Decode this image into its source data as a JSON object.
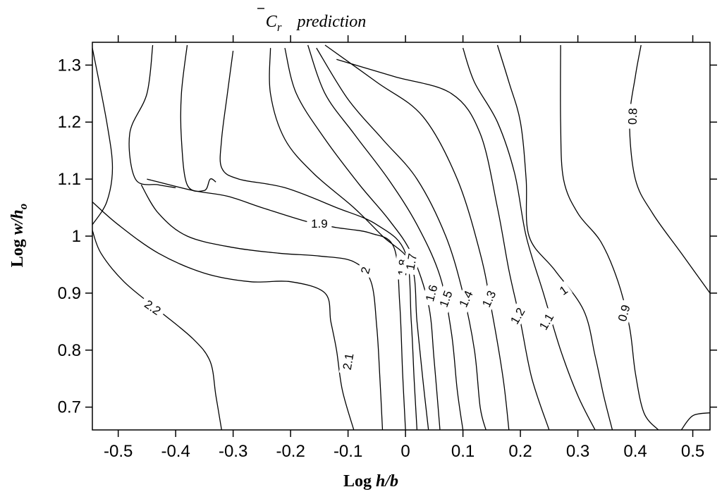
{
  "chart_data": {
    "type": "contour",
    "title": {
      "symbol": "C",
      "subscript": "r",
      "text": "prediction"
    },
    "xlabel": {
      "plain": "Log ",
      "italic": "h/b"
    },
    "ylabel": {
      "plain": "Log ",
      "italic": "w/h",
      "subscript": "o"
    },
    "xlim": [
      -0.545,
      0.53
    ],
    "ylim": [
      0.66,
      1.34
    ],
    "xticks": [
      -0.5,
      -0.4,
      -0.3,
      -0.2,
      -0.1,
      0,
      0.1,
      0.2,
      0.3,
      0.4,
      0.5
    ],
    "xtick_labels": [
      "-0.5",
      "-0.4",
      "-0.3",
      "-0.2",
      "-0.1",
      "0",
      "0.1",
      "0.2",
      "0.3",
      "0.4",
      "0.5"
    ],
    "yticks": [
      0.7,
      0.8,
      0.9,
      1.0,
      1.1,
      1.2,
      1.3
    ],
    "ytick_labels": [
      "0.7",
      "0.8",
      "0.9",
      "1",
      "1.1",
      "1.2",
      "1.3"
    ],
    "grid": false,
    "contours": [
      {
        "level": "2.2",
        "points": [
          [
            -0.32,
            0.66
          ],
          [
            -0.33,
            0.72
          ],
          [
            -0.34,
            0.78
          ],
          [
            -0.37,
            0.82
          ],
          [
            -0.43,
            0.87
          ],
          [
            -0.49,
            0.92
          ],
          [
            -0.53,
            0.97
          ],
          [
            -0.545,
            1.01
          ]
        ],
        "label": {
          "x": -0.44,
          "y": 0.875,
          "rot": 35
        }
      },
      {
        "level": "2.1",
        "points": [
          [
            -0.545,
            1.06
          ],
          [
            -0.5,
            1.02
          ],
          [
            -0.43,
            0.97
          ],
          [
            -0.35,
            0.935
          ],
          [
            -0.27,
            0.92
          ],
          [
            -0.2,
            0.92
          ],
          [
            -0.14,
            0.9
          ],
          [
            -0.13,
            0.85
          ],
          [
            -0.12,
            0.8
          ],
          [
            -0.11,
            0.73
          ],
          [
            -0.09,
            0.66
          ]
        ],
        "label": {
          "x": -0.1,
          "y": 0.78,
          "rot": -80
        }
      },
      {
        "level": "2",
        "points": [
          [
            -0.46,
            1.09
          ],
          [
            -0.43,
            1.04
          ],
          [
            -0.38,
            1.0
          ],
          [
            -0.3,
            0.98
          ],
          [
            -0.22,
            0.97
          ],
          [
            -0.15,
            0.965
          ],
          [
            -0.09,
            0.955
          ],
          [
            -0.06,
            0.92
          ],
          [
            -0.05,
            0.84
          ],
          [
            -0.045,
            0.76
          ],
          [
            -0.04,
            0.66
          ]
        ],
        "label": {
          "x": -0.07,
          "y": 0.94,
          "rot": -75
        }
      },
      {
        "level": "1.9",
        "points": [
          [
            -0.45,
            1.1
          ],
          [
            -0.37,
            1.08
          ],
          [
            -0.31,
            1.07
          ],
          [
            -0.25,
            1.05
          ],
          [
            -0.17,
            1.025
          ],
          [
            -0.12,
            1.015
          ],
          [
            -0.06,
            1.005
          ],
          [
            -0.02,
            0.98
          ],
          [
            -0.01,
            0.88
          ],
          [
            -0.005,
            0.76
          ],
          [
            0.0,
            0.66
          ]
        ],
        "label": {
          "x": -0.15,
          "y": 1.022,
          "rot": 0
        }
      },
      {
        "level": "1.8",
        "points": [
          [
            -0.3,
            1.325
          ],
          [
            -0.31,
            1.25
          ],
          [
            -0.32,
            1.17
          ],
          [
            -0.32,
            1.12
          ],
          [
            -0.29,
            1.1
          ],
          [
            -0.21,
            1.085
          ],
          [
            -0.12,
            1.05
          ],
          [
            -0.05,
            1.02
          ],
          [
            0.0,
            0.97
          ],
          [
            0.01,
            0.85
          ],
          [
            0.015,
            0.75
          ],
          [
            0.02,
            0.66
          ]
        ],
        "label": {
          "x": -0.005,
          "y": 0.945,
          "rot": -85
        }
      },
      {
        "level": "1.7",
        "points": [
          [
            -0.235,
            1.33
          ],
          [
            -0.235,
            1.25
          ],
          [
            -0.21,
            1.17
          ],
          [
            -0.16,
            1.11
          ],
          [
            -0.09,
            1.05
          ],
          [
            -0.04,
            1.0
          ],
          [
            0.01,
            0.95
          ],
          [
            0.02,
            0.85
          ],
          [
            0.03,
            0.75
          ],
          [
            0.04,
            0.66
          ]
        ],
        "label": {
          "x": 0.01,
          "y": 0.955,
          "rot": -80
        }
      },
      {
        "level": "1.6",
        "points": [
          [
            -0.21,
            1.33
          ],
          [
            -0.19,
            1.25
          ],
          [
            -0.14,
            1.17
          ],
          [
            -0.08,
            1.09
          ],
          [
            -0.03,
            1.03
          ],
          [
            0.01,
            0.97
          ],
          [
            0.04,
            0.88
          ],
          [
            0.05,
            0.78
          ],
          [
            0.06,
            0.66
          ]
        ],
        "label": {
          "x": 0.045,
          "y": 0.9,
          "rot": -75
        }
      },
      {
        "level": "1.5",
        "points": [
          [
            -0.17,
            1.335
          ],
          [
            -0.14,
            1.25
          ],
          [
            -0.09,
            1.18
          ],
          [
            -0.03,
            1.1
          ],
          [
            0.02,
            1.02
          ],
          [
            0.06,
            0.93
          ],
          [
            0.08,
            0.83
          ],
          [
            0.09,
            0.73
          ],
          [
            0.1,
            0.66
          ]
        ],
        "label": {
          "x": 0.07,
          "y": 0.89,
          "rot": -70
        }
      },
      {
        "level": "1.4",
        "points": [
          [
            -0.155,
            1.33
          ],
          [
            -0.1,
            1.24
          ],
          [
            -0.04,
            1.17
          ],
          [
            0.02,
            1.1
          ],
          [
            0.07,
            1.0
          ],
          [
            0.1,
            0.9
          ],
          [
            0.12,
            0.8
          ],
          [
            0.13,
            0.7
          ],
          [
            0.14,
            0.66
          ]
        ],
        "label": {
          "x": 0.105,
          "y": 0.89,
          "rot": -65
        }
      },
      {
        "level": "1.3",
        "points": [
          [
            -0.14,
            1.335
          ],
          [
            -0.05,
            1.27
          ],
          [
            0.03,
            1.21
          ],
          [
            0.09,
            1.1
          ],
          [
            0.13,
            0.97
          ],
          [
            0.15,
            0.87
          ],
          [
            0.17,
            0.75
          ],
          [
            0.18,
            0.66
          ]
        ],
        "label": {
          "x": 0.145,
          "y": 0.89,
          "rot": -65
        }
      },
      {
        "level": "1.2",
        "points": [
          [
            -0.12,
            1.31
          ],
          [
            -0.02,
            1.28
          ],
          [
            0.08,
            1.25
          ],
          [
            0.13,
            1.18
          ],
          [
            0.16,
            1.05
          ],
          [
            0.18,
            0.94
          ],
          [
            0.2,
            0.85
          ],
          [
            0.22,
            0.75
          ],
          [
            0.25,
            0.66
          ]
        ],
        "label": {
          "x": 0.195,
          "y": 0.86,
          "rot": -60
        }
      },
      {
        "level": "1.1",
        "points": [
          [
            0.1,
            1.33
          ],
          [
            0.12,
            1.27
          ],
          [
            0.16,
            1.2
          ],
          [
            0.19,
            1.11
          ],
          [
            0.21,
            1.0
          ],
          [
            0.24,
            0.9
          ],
          [
            0.27,
            0.8
          ],
          [
            0.3,
            0.72
          ],
          [
            0.33,
            0.66
          ]
        ],
        "label": {
          "x": 0.245,
          "y": 0.85,
          "rot": -60
        }
      },
      {
        "level": "1",
        "points": [
          [
            0.16,
            1.335
          ],
          [
            0.18,
            1.27
          ],
          [
            0.2,
            1.2
          ],
          [
            0.21,
            1.1
          ],
          [
            0.215,
            1.0
          ],
          [
            0.26,
            0.94
          ],
          [
            0.31,
            0.87
          ],
          [
            0.33,
            0.79
          ],
          [
            0.345,
            0.72
          ],
          [
            0.36,
            0.66
          ]
        ],
        "label": {
          "x": 0.275,
          "y": 0.905,
          "rot": -35
        }
      },
      {
        "level": "0.9",
        "points": [
          [
            0.27,
            1.335
          ],
          [
            0.27,
            1.2
          ],
          [
            0.275,
            1.1
          ],
          [
            0.3,
            1.04
          ],
          [
            0.34,
            0.99
          ],
          [
            0.37,
            0.92
          ],
          [
            0.39,
            0.84
          ],
          [
            0.4,
            0.76
          ],
          [
            0.415,
            0.69
          ],
          [
            0.44,
            0.66
          ]
        ],
        "label": {
          "x": 0.38,
          "y": 0.865,
          "rot": -75
        }
      },
      {
        "level": "0.8",
        "points": [
          [
            0.41,
            1.335
          ],
          [
            0.4,
            1.28
          ],
          [
            0.39,
            1.2
          ],
          [
            0.4,
            1.1
          ],
          [
            0.43,
            1.04
          ],
          [
            0.48,
            0.97
          ],
          [
            0.53,
            0.9
          ]
        ],
        "label": {
          "x": 0.395,
          "y": 1.21,
          "rot": -88
        }
      }
    ],
    "open_contours": [
      {
        "points": [
          [
            -0.545,
            1.33
          ],
          [
            -0.52,
            1.2
          ],
          [
            -0.51,
            1.12
          ],
          [
            -0.52,
            1.06
          ],
          [
            -0.545,
            1.02
          ]
        ]
      },
      {
        "points": [
          [
            -0.44,
            1.335
          ],
          [
            -0.45,
            1.25
          ],
          [
            -0.48,
            1.18
          ],
          [
            -0.47,
            1.1
          ],
          [
            -0.43,
            1.09
          ],
          [
            -0.4,
            1.085
          ]
        ]
      },
      {
        "points": [
          [
            -0.38,
            1.335
          ],
          [
            -0.39,
            1.25
          ],
          [
            -0.39,
            1.17
          ],
          [
            -0.38,
            1.09
          ],
          [
            -0.35,
            1.08
          ],
          [
            -0.34,
            1.1
          ],
          [
            -0.33,
            1.095
          ]
        ]
      },
      {
        "points": [
          [
            0.48,
            0.66
          ],
          [
            0.5,
            0.685
          ],
          [
            0.53,
            0.69
          ]
        ]
      }
    ]
  }
}
